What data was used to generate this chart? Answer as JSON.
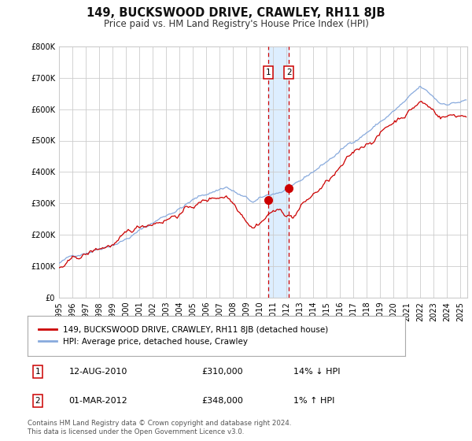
{
  "title": "149, BUCKSWOOD DRIVE, CRAWLEY, RH11 8JB",
  "subtitle": "Price paid vs. HM Land Registry's House Price Index (HPI)",
  "background_color": "#ffffff",
  "plot_bg_color": "#ffffff",
  "grid_color": "#cccccc",
  "hpi_line_color": "#88aadd",
  "price_line_color": "#cc0000",
  "sale1_date_num": 2010.617,
  "sale2_date_num": 2012.167,
  "sale1_price": 310000,
  "sale2_price": 348000,
  "sale1_text": "12-AUG-2010",
  "sale2_text": "01-MAR-2012",
  "sale1_rel": "14% ↓ HPI",
  "sale2_rel": "1% ↑ HPI",
  "legend_price_label": "149, BUCKSWOOD DRIVE, CRAWLEY, RH11 8JB (detached house)",
  "legend_hpi_label": "HPI: Average price, detached house, Crawley",
  "footer": "Contains HM Land Registry data © Crown copyright and database right 2024.\nThis data is licensed under the Open Government Licence v3.0.",
  "xmin": 1995.0,
  "xmax": 2025.5,
  "ymin": 0,
  "ymax": 800000,
  "shade_color": "#ddeeff",
  "marker_color": "#cc0000",
  "dashed_line_color": "#cc0000",
  "box_edge_color": "#cc0000",
  "title_fontsize": 10.5,
  "subtitle_fontsize": 8.5,
  "tick_fontsize": 7,
  "legend_fontsize": 7.5,
  "footer_fontsize": 6.2
}
